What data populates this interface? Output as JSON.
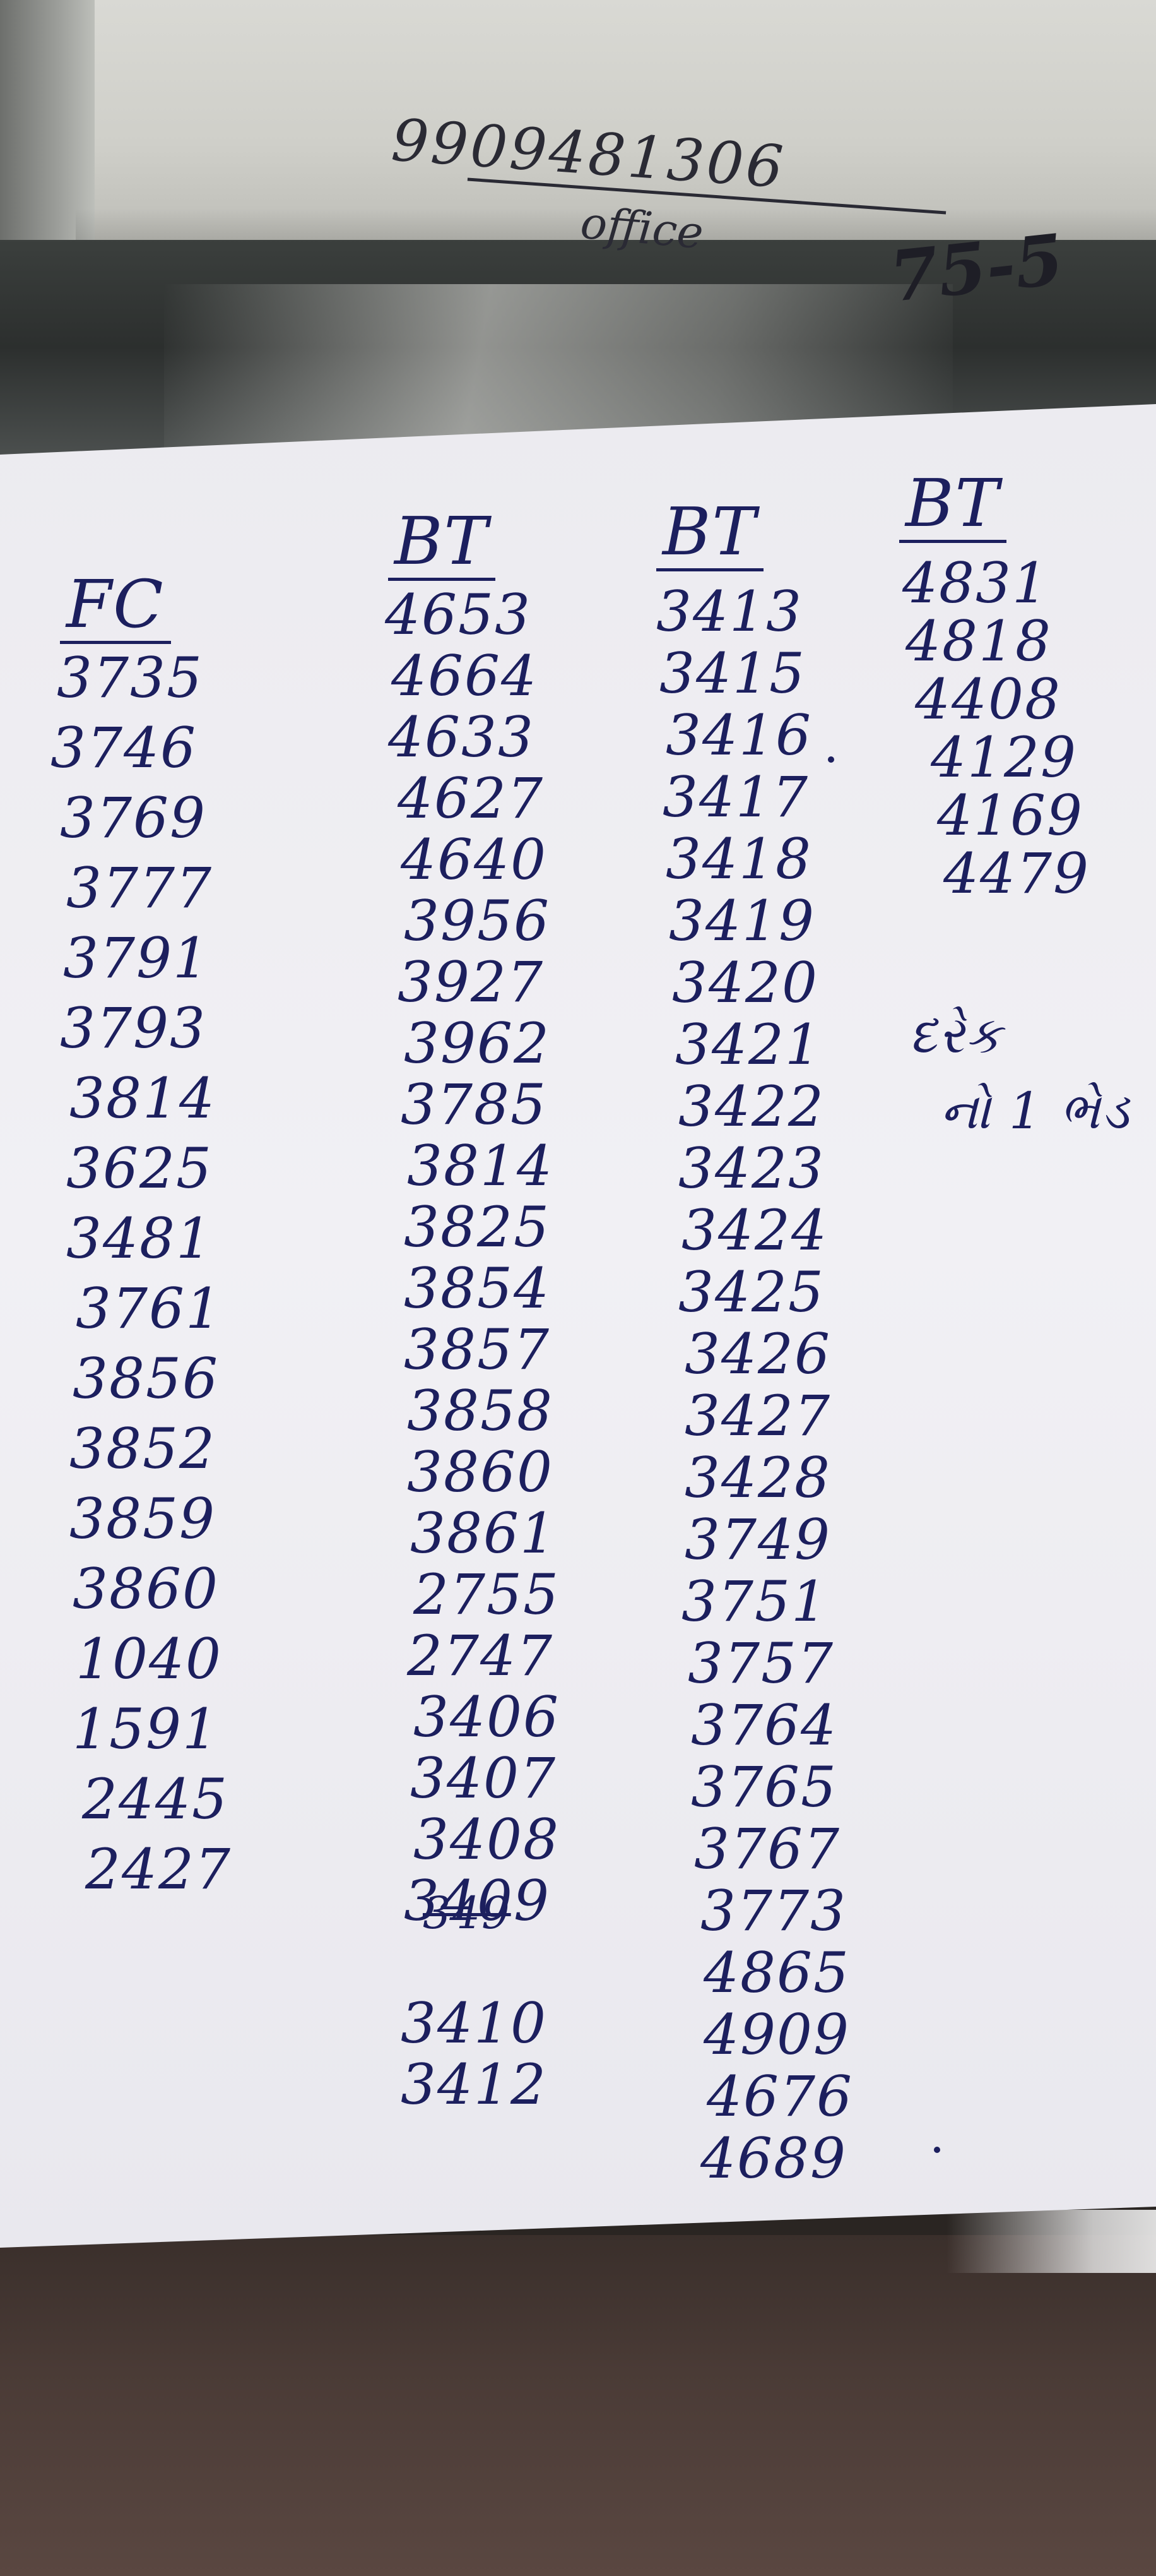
{
  "wall_note": {
    "phone": "9909481306",
    "label": "office",
    "partial": "75-5"
  },
  "columns": [
    {
      "header": "FC",
      "values": [
        "3735",
        "3746",
        "3769",
        "3777",
        "3791",
        "3793",
        "3814",
        "3625",
        "3481",
        "3761",
        "3856",
        "3852",
        "3859",
        "3860",
        "1040",
        "1591",
        "2445",
        "2427"
      ]
    },
    {
      "header": "BT",
      "values": [
        "4653",
        "4664",
        "4633",
        "4627",
        "4640",
        "3956",
        "3927",
        "3962",
        "3785",
        "3814",
        "3825",
        "3854",
        "3857",
        "3858",
        "3860",
        "3861",
        "2755",
        "2747",
        "3406",
        "3407",
        "3408",
        "3409",
        "3410",
        "3412"
      ],
      "struck_value": "349"
    },
    {
      "header": "BT",
      "values": [
        "3413",
        "3415",
        "3416",
        "3417",
        "3418",
        "3419",
        "3420",
        "3421",
        "3422",
        "3423",
        "3424",
        "3425",
        "3426",
        "3427",
        "3428",
        "3749",
        "3751",
        "3757",
        "3764",
        "3765",
        "3767",
        "3773",
        "4865",
        "4909",
        "4676",
        "4689"
      ]
    },
    {
      "header": "BT",
      "values": [
        "4831",
        "4818",
        "4408",
        "4129",
        "4169",
        "4479"
      ],
      "note_line1": "દરેક",
      "note_line2": "નો 1 ભેડ"
    }
  ]
}
